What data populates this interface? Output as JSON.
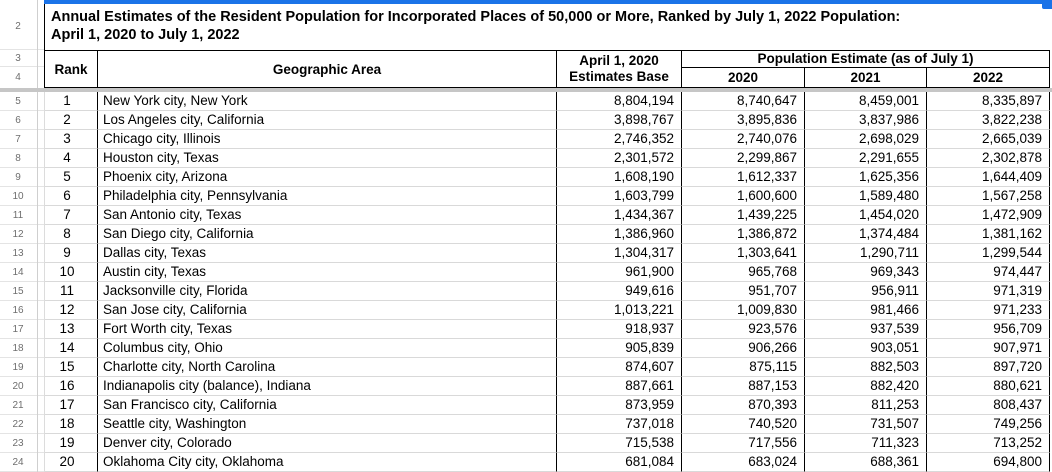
{
  "colors": {
    "selection_blue": "#1a73e8",
    "header_border": "#000000",
    "gridline_light": "#d9d9d9",
    "freeze_divider_gray": "#c6c6c6"
  },
  "gutter": {
    "row_numbers": [
      "2",
      "3",
      "4",
      "5",
      "6",
      "7",
      "8",
      "9",
      "10",
      "11",
      "12",
      "13",
      "14",
      "15",
      "16",
      "17",
      "18",
      "19",
      "20",
      "21",
      "22",
      "23",
      "24"
    ]
  },
  "title": {
    "line1": "Annual Estimates of the Resident Population for Incorporated Places of 50,000 or More, Ranked by July 1, 2022 Population:",
    "line2": "April 1, 2020 to July 1, 2022"
  },
  "table": {
    "headers": {
      "rank": "Rank",
      "geographic_area": "Geographic Area",
      "estimates_base": [
        "April 1, 2020",
        "Estimates Base"
      ],
      "population_estimate": "Population Estimate (as of July 1)",
      "years": [
        "2020",
        "2021",
        "2022"
      ]
    },
    "rows": [
      {
        "rank": "1",
        "area": "New York city, New York",
        "base": "8,804,194",
        "y2020": "8,740,647",
        "y2021": "8,459,001",
        "y2022": "8,335,897"
      },
      {
        "rank": "2",
        "area": "Los Angeles city, California",
        "base": "3,898,767",
        "y2020": "3,895,836",
        "y2021": "3,837,986",
        "y2022": "3,822,238"
      },
      {
        "rank": "3",
        "area": "Chicago city, Illinois",
        "base": "2,746,352",
        "y2020": "2,740,076",
        "y2021": "2,698,029",
        "y2022": "2,665,039"
      },
      {
        "rank": "4",
        "area": "Houston city, Texas",
        "base": "2,301,572",
        "y2020": "2,299,867",
        "y2021": "2,291,655",
        "y2022": "2,302,878"
      },
      {
        "rank": "5",
        "area": "Phoenix city, Arizona",
        "base": "1,608,190",
        "y2020": "1,612,337",
        "y2021": "1,625,356",
        "y2022": "1,644,409"
      },
      {
        "rank": "6",
        "area": "Philadelphia city, Pennsylvania",
        "base": "1,603,799",
        "y2020": "1,600,600",
        "y2021": "1,589,480",
        "y2022": "1,567,258"
      },
      {
        "rank": "7",
        "area": "San Antonio city, Texas",
        "base": "1,434,367",
        "y2020": "1,439,225",
        "y2021": "1,454,020",
        "y2022": "1,472,909"
      },
      {
        "rank": "8",
        "area": "San Diego city, California",
        "base": "1,386,960",
        "y2020": "1,386,872",
        "y2021": "1,374,484",
        "y2022": "1,381,162"
      },
      {
        "rank": "9",
        "area": "Dallas city, Texas",
        "base": "1,304,317",
        "y2020": "1,303,641",
        "y2021": "1,290,711",
        "y2022": "1,299,544"
      },
      {
        "rank": "10",
        "area": "Austin city, Texas",
        "base": "961,900",
        "y2020": "965,768",
        "y2021": "969,343",
        "y2022": "974,447"
      },
      {
        "rank": "11",
        "area": "Jacksonville city, Florida",
        "base": "949,616",
        "y2020": "951,707",
        "y2021": "956,911",
        "y2022": "971,319"
      },
      {
        "rank": "12",
        "area": "San Jose city, California",
        "base": "1,013,221",
        "y2020": "1,009,830",
        "y2021": "981,466",
        "y2022": "971,233"
      },
      {
        "rank": "13",
        "area": "Fort Worth city, Texas",
        "base": "918,937",
        "y2020": "923,576",
        "y2021": "937,539",
        "y2022": "956,709"
      },
      {
        "rank": "14",
        "area": "Columbus city, Ohio",
        "base": "905,839",
        "y2020": "906,266",
        "y2021": "903,051",
        "y2022": "907,971"
      },
      {
        "rank": "15",
        "area": "Charlotte city, North Carolina",
        "base": "874,607",
        "y2020": "875,115",
        "y2021": "882,503",
        "y2022": "897,720"
      },
      {
        "rank": "16",
        "area": "Indianapolis city (balance), Indiana",
        "base": "887,661",
        "y2020": "887,153",
        "y2021": "882,420",
        "y2022": "880,621"
      },
      {
        "rank": "17",
        "area": "San Francisco city, California",
        "base": "873,959",
        "y2020": "870,393",
        "y2021": "811,253",
        "y2022": "808,437"
      },
      {
        "rank": "18",
        "area": "Seattle city, Washington",
        "base": "737,018",
        "y2020": "740,520",
        "y2021": "731,507",
        "y2022": "749,256"
      },
      {
        "rank": "19",
        "area": "Denver city, Colorado",
        "base": "715,538",
        "y2020": "717,556",
        "y2021": "711,323",
        "y2022": "713,252"
      },
      {
        "rank": "20",
        "area": "Oklahoma City city, Oklahoma",
        "base": "681,084",
        "y2020": "683,024",
        "y2021": "688,361",
        "y2022": "694,800"
      }
    ]
  }
}
